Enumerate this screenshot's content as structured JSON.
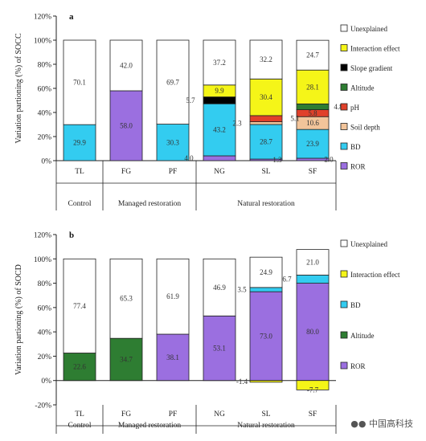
{
  "chart_data": [
    {
      "type": "bar",
      "stacked": true,
      "panel": "a",
      "ylabel": "Variation partioning (%) of SOCC",
      "ylim": [
        0,
        120
      ],
      "yticks": [
        "0%",
        "20%",
        "40%",
        "60%",
        "80%",
        "100%",
        "120%"
      ],
      "categories": [
        "TL",
        "FG",
        "PF",
        "NG",
        "SL",
        "SF"
      ],
      "groups": [
        {
          "label": "Control",
          "span": [
            0,
            0
          ]
        },
        {
          "label": "Managed restoration",
          "span": [
            1,
            2
          ]
        },
        {
          "label": "Natural restoration",
          "span": [
            3,
            5
          ]
        }
      ],
      "series": [
        {
          "name": "ROR",
          "color": "#9b6fe0",
          "values": [
            0,
            58.0,
            0,
            4.0,
            1.3,
            2.0
          ]
        },
        {
          "name": "BD",
          "color": "#33ccf0",
          "values": [
            29.9,
            0,
            30.3,
            43.2,
            28.7,
            23.9
          ]
        },
        {
          "name": "Soil depth",
          "color": "#f2c49a",
          "values": [
            0,
            0,
            0,
            0,
            2.3,
            10.6
          ]
        },
        {
          "name": "pH",
          "color": "#e0402a",
          "values": [
            0,
            0,
            0,
            0,
            5.1,
            5.8
          ]
        },
        {
          "name": "Altitude",
          "color": "#2e7d32",
          "values": [
            0,
            0,
            0,
            0,
            0,
            4.8
          ]
        },
        {
          "name": "Slope gradient",
          "color": "#000000",
          "values": [
            0,
            0,
            0,
            5.7,
            0,
            0
          ]
        },
        {
          "name": "Interaction effect",
          "color": "#f5f518",
          "values": [
            0,
            0,
            0,
            9.9,
            30.4,
            28.1
          ]
        },
        {
          "name": "Unexplained",
          "color": "#ffffff",
          "values": [
            70.1,
            42.0,
            69.7,
            37.2,
            32.2,
            24.7
          ]
        }
      ],
      "data_labels": [
        "70.1",
        "29.9",
        "42.0",
        "58.0",
        "69.7",
        "30.3",
        "37.2",
        "9.9",
        "5.7",
        "43.2",
        "4.0",
        "32.2",
        "30.4",
        "2.3",
        "5.1",
        "28.7",
        "1.3",
        "24.7",
        "28.1",
        "4.8",
        "5.8",
        "10.6",
        "23.9",
        "2.0"
      ]
    },
    {
      "type": "bar",
      "stacked": true,
      "panel": "b",
      "ylabel": "Variation partioning (%) of SOCD",
      "ylim": [
        -20,
        120
      ],
      "yticks": [
        "-20%",
        "0%",
        "20%",
        "40%",
        "60%",
        "80%",
        "100%",
        "120%"
      ],
      "categories": [
        "TL",
        "FG",
        "PF",
        "NG",
        "SL",
        "SF"
      ],
      "groups": [
        {
          "label": "Control",
          "span": [
            0,
            0
          ]
        },
        {
          "label": "Managed restoration",
          "span": [
            1,
            2
          ]
        },
        {
          "label": "Natural restoration",
          "span": [
            3,
            5
          ]
        }
      ],
      "series": [
        {
          "name": "ROR",
          "color": "#9b6fe0",
          "values": [
            0,
            0,
            38.1,
            53.1,
            73.0,
            80.0
          ]
        },
        {
          "name": "Altitude",
          "color": "#2e7d32",
          "values": [
            22.6,
            34.7,
            0,
            0,
            0,
            0
          ]
        },
        {
          "name": "BD",
          "color": "#33ccf0",
          "values": [
            0,
            0,
            0,
            0,
            3.5,
            6.7
          ]
        },
        {
          "name": "Interaction effect",
          "color": "#f5f518",
          "values": [
            0,
            0,
            0,
            0,
            -1.4,
            -7.7
          ]
        },
        {
          "name": "Unexplained",
          "color": "#ffffff",
          "values": [
            77.4,
            65.3,
            61.9,
            46.9,
            24.9,
            21.0
          ]
        }
      ],
      "data_labels": [
        "77.4",
        "22.6",
        "65.3",
        "34.7",
        "61.9",
        "38.1",
        "46.9",
        "53.1",
        "24.9",
        "3.5",
        "73.0",
        "-1.4",
        "21.0",
        "6.7",
        "80.0",
        "-7.7"
      ]
    }
  ],
  "watermark": "中国高科技"
}
